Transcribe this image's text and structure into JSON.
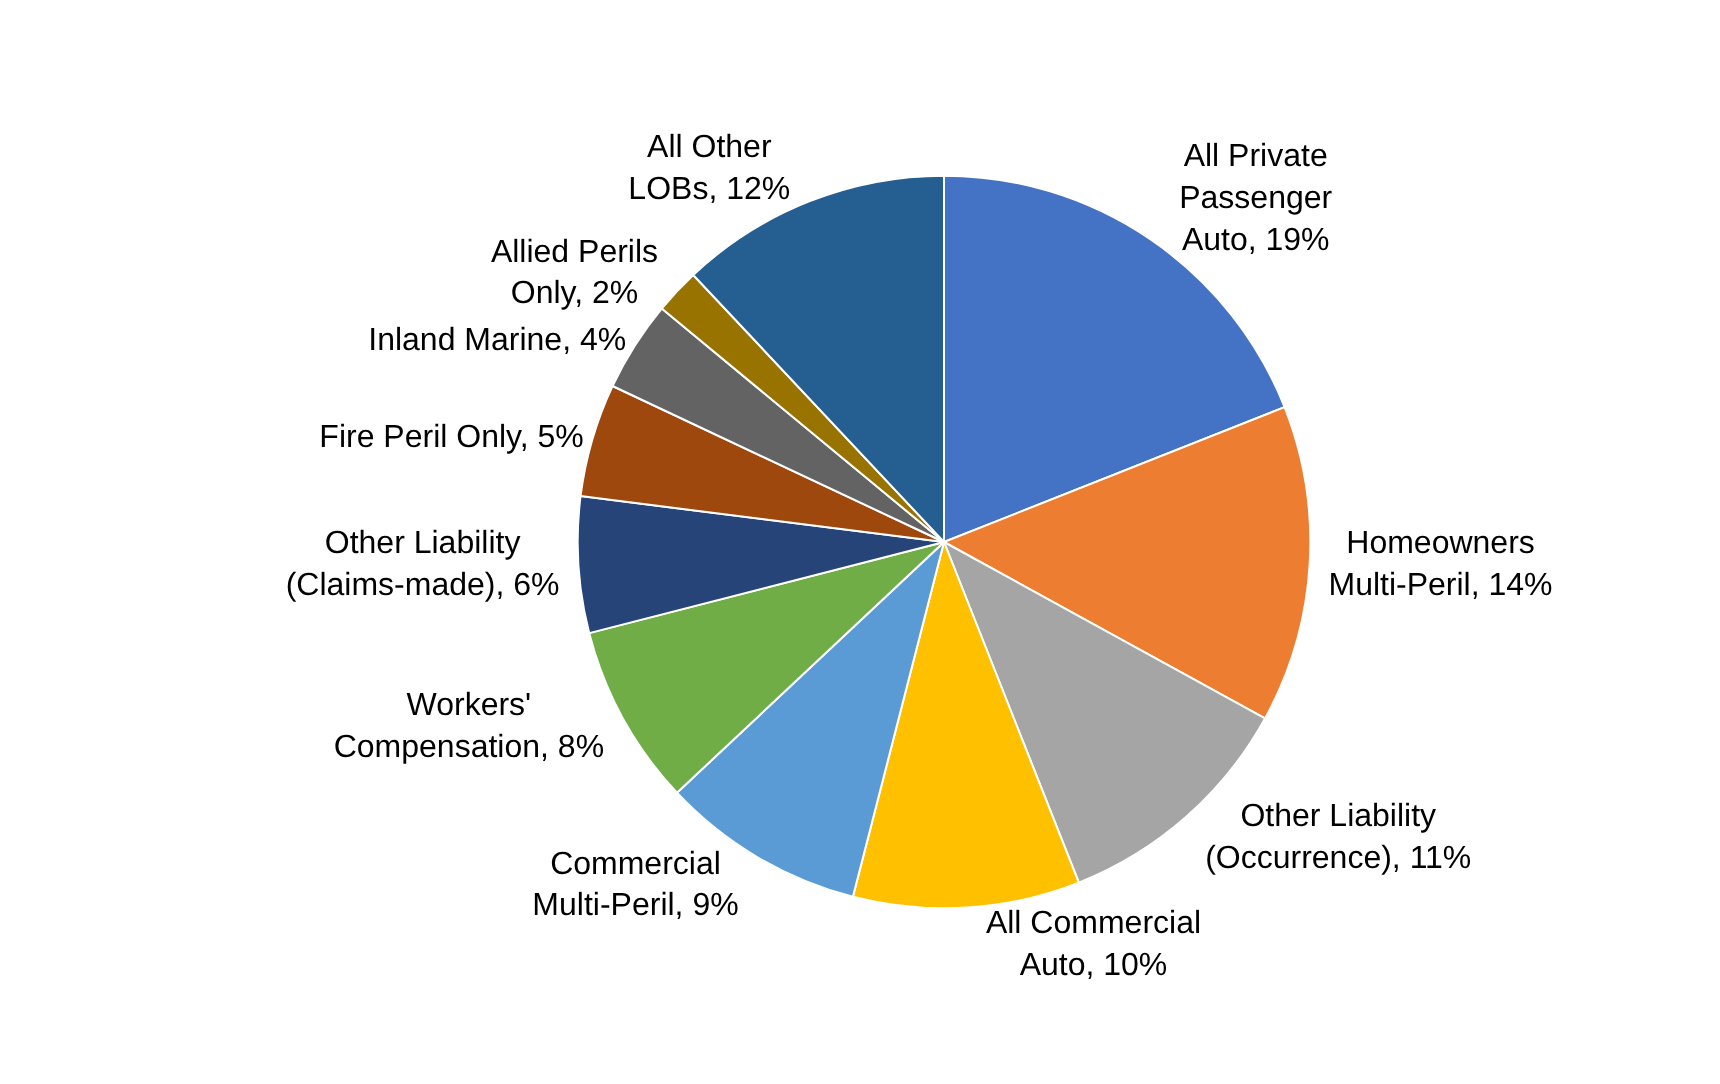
{
  "chart_data": {
    "type": "pie",
    "categories": [
      "All Private Passenger Auto",
      "Homeowners Multi-Peril",
      "Other Liability (Occurrence)",
      "All Commercial Auto",
      "Commercial Multi-Peril",
      "Workers' Compensation",
      "Other Liability (Claims-made)",
      "Fire Peril Only",
      "Inland Marine",
      "Allied Perils Only",
      "All Other LOBs"
    ],
    "values": [
      19,
      14,
      11,
      10,
      9,
      8,
      6,
      5,
      4,
      2,
      12
    ],
    "value_labels": [
      "19%",
      "14%",
      "11%",
      "10%",
      "9%",
      "8%",
      "6%",
      "5%",
      "4%",
      "2%",
      "12%"
    ],
    "colors": [
      "#4472c4",
      "#ed7d31",
      "#a5a5a5",
      "#ffc000",
      "#5b9bd5",
      "#70ad47",
      "#264478",
      "#9e480e",
      "#636363",
      "#997300",
      "#255e91"
    ],
    "legend": false
  }
}
